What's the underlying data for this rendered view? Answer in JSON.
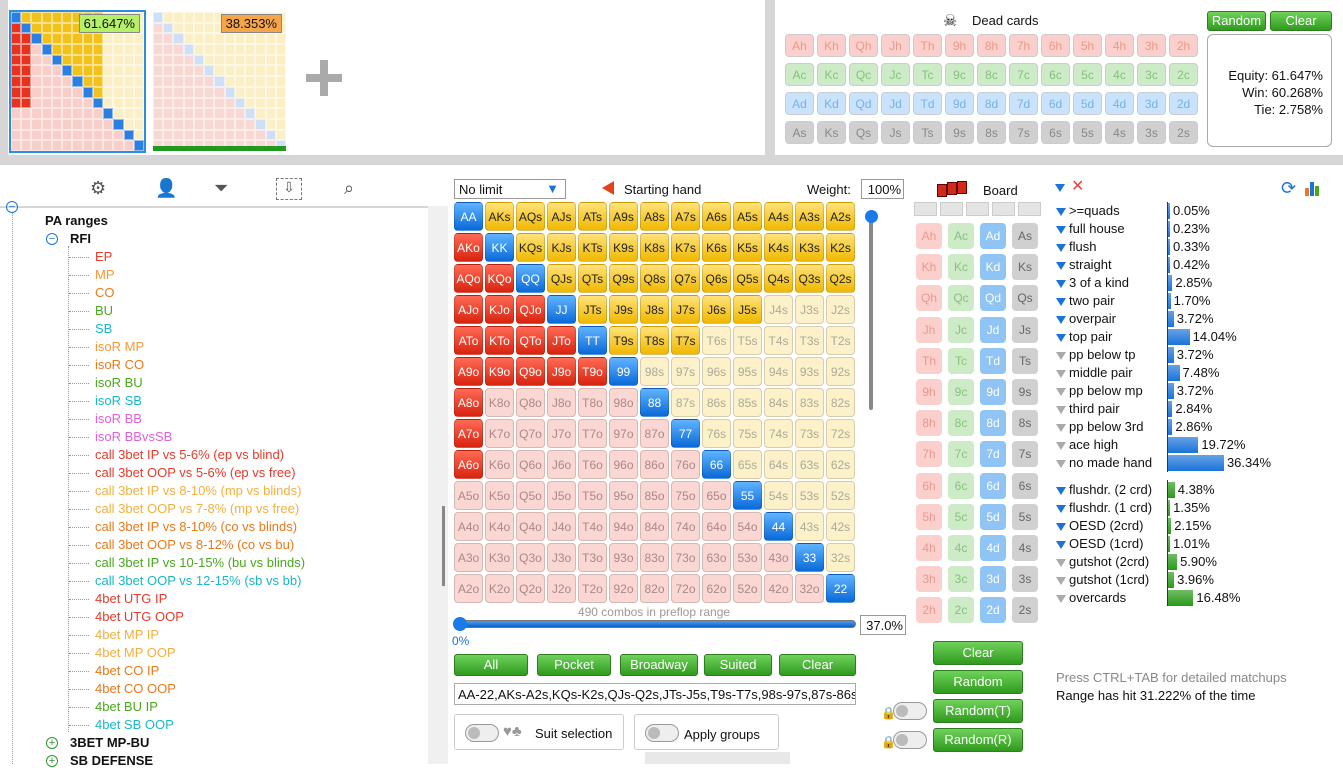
{
  "players": [
    {
      "equity": "61.647%",
      "badge_color": "#b6f06a"
    },
    {
      "equity": "38.353%",
      "badge_color": "#f5a64a"
    }
  ],
  "dead_cards": {
    "title": "Dead cards",
    "random_label": "Random",
    "clear_label": "Clear",
    "rows": [
      [
        "Ah",
        "Kh",
        "Qh",
        "Jh",
        "Th",
        "9h",
        "8h",
        "7h",
        "6h",
        "5h",
        "4h",
        "3h",
        "2h"
      ],
      [
        "Ac",
        "Kc",
        "Qc",
        "Jc",
        "Tc",
        "9c",
        "8c",
        "7c",
        "6c",
        "5c",
        "4c",
        "3c",
        "2c"
      ],
      [
        "Ad",
        "Kd",
        "Qd",
        "Jd",
        "Td",
        "9d",
        "8d",
        "7d",
        "6d",
        "5d",
        "4d",
        "3d",
        "2d"
      ],
      [
        "As",
        "Ks",
        "Qs",
        "Js",
        "Ts",
        "9s",
        "8s",
        "7s",
        "6s",
        "5s",
        "4s",
        "3s",
        "2s"
      ]
    ],
    "equity": "Equity: 61.647%",
    "win": "Win: 60.268%",
    "tie": "Tie: 2.758%"
  },
  "tree": {
    "root": "PA ranges",
    "rfi": "RFI",
    "items": [
      {
        "t": "EP",
        "c": "#e23c2c"
      },
      {
        "t": "MP",
        "c": "#f29a3a"
      },
      {
        "t": "CO",
        "c": "#e87a1a"
      },
      {
        "t": "BU",
        "c": "#4aa81e"
      },
      {
        "t": "SB",
        "c": "#1ab8c8"
      },
      {
        "t": "isoR MP",
        "c": "#f29a3a"
      },
      {
        "t": "isoR CO",
        "c": "#e87a1a"
      },
      {
        "t": "isoR BU",
        "c": "#4aa81e"
      },
      {
        "t": "isoR SB",
        "c": "#1ab8c8"
      },
      {
        "t": "isoR BB",
        "c": "#e060d8"
      },
      {
        "t": "isoR BBvsSB",
        "c": "#e060d8"
      },
      {
        "t": "call 3bet IP vs 5-6% (ep vs blind)",
        "c": "#e23c2c"
      },
      {
        "t": "call 3bet OOP vs 5-6% (ep vs free)",
        "c": "#e23c2c"
      },
      {
        "t": "call 3bet IP vs 8-10% (mp vs blinds)",
        "c": "#f2b040"
      },
      {
        "t": "call 3bet OOP vs 7-8% (mp vs free)",
        "c": "#f2b040"
      },
      {
        "t": "call 3bet IP vs 8-10% (co vs blinds)",
        "c": "#e87a1a"
      },
      {
        "t": "call 3bet OOP vs 8-12% (co vs bu)",
        "c": "#e87a1a"
      },
      {
        "t": "call 3bet IP vs 10-15% (bu vs blinds)",
        "c": "#4aa81e"
      },
      {
        "t": "call 3bet OOP vs 12-15% (sb vs bb)",
        "c": "#1ab8c8"
      },
      {
        "t": "4bet UTG IP",
        "c": "#e23c2c"
      },
      {
        "t": "4bet UTG OOP",
        "c": "#e23c2c"
      },
      {
        "t": "4bet MP IP",
        "c": "#f2b040"
      },
      {
        "t": "4bet MP OOP",
        "c": "#f2b040"
      },
      {
        "t": "4bet CO IP",
        "c": "#e87a1a"
      },
      {
        "t": "4bet CO OOP",
        "c": "#e87a1a"
      },
      {
        "t": "4bet BU IP",
        "c": "#4aa81e"
      },
      {
        "t": "4bet SB OOP",
        "c": "#1ab8c8"
      }
    ],
    "group2": "3BET MP-BU",
    "group3": "SB DEFENSE"
  },
  "range": {
    "limit": "No limit",
    "starting_hand": "Starting hand",
    "weight_label": "Weight:",
    "weight": "100%",
    "combos": "490 combos in preflop range",
    "slider_pct": "37.0%",
    "min_pct": "0%",
    "buttons": [
      "All",
      "Pocket",
      "Broadway",
      "Suited",
      "Clear"
    ],
    "text": "AA-22,AKs-A2s,KQs-K2s,QJs-Q2s,JTs-J5s,T9s-T7s,98s-97s,87s-86s,",
    "suit_selection": "Suit selection",
    "apply_groups": "Apply groups"
  },
  "board": {
    "title": "Board",
    "cards": [
      [
        "Ah",
        "Ac",
        "Ad",
        "As"
      ],
      [
        "Kh",
        "Kc",
        "Kd",
        "Ks"
      ],
      [
        "Qh",
        "Qc",
        "Qd",
        "Qs"
      ],
      [
        "Jh",
        "Jc",
        "Jd",
        "Js"
      ],
      [
        "Th",
        "Tc",
        "Td",
        "Ts"
      ],
      [
        "9h",
        "9c",
        "9d",
        "9s"
      ],
      [
        "8h",
        "8c",
        "8d",
        "8s"
      ],
      [
        "7h",
        "7c",
        "7d",
        "7s"
      ],
      [
        "6h",
        "6c",
        "6d",
        "6s"
      ],
      [
        "5h",
        "5c",
        "5d",
        "5s"
      ],
      [
        "4h",
        "4c",
        "4d",
        "4s"
      ],
      [
        "3h",
        "3c",
        "3d",
        "3s"
      ],
      [
        "2h",
        "2c",
        "2d",
        "2s"
      ]
    ],
    "buttons": [
      "Clear",
      "Random",
      "Random(T)",
      "Random(R)"
    ]
  },
  "stats": {
    "made": [
      {
        "n": ">=quads",
        "v": "0.05%",
        "p": 0.05,
        "f": "b"
      },
      {
        "n": "full house",
        "v": "0.23%",
        "p": 0.23,
        "f": "b"
      },
      {
        "n": "flush",
        "v": "0.33%",
        "p": 0.33,
        "f": "b"
      },
      {
        "n": "straight",
        "v": "0.42%",
        "p": 0.42,
        "f": "b"
      },
      {
        "n": "3 of a kind",
        "v": "2.85%",
        "p": 2.85,
        "f": "b"
      },
      {
        "n": "two pair",
        "v": "1.70%",
        "p": 1.7,
        "f": "b"
      },
      {
        "n": "overpair",
        "v": "3.72%",
        "p": 3.72,
        "f": "b"
      },
      {
        "n": "top pair",
        "v": "14.04%",
        "p": 14.04,
        "f": "b"
      },
      {
        "n": "pp below tp",
        "v": "3.72%",
        "p": 3.72,
        "f": "g"
      },
      {
        "n": "middle pair",
        "v": "7.48%",
        "p": 7.48,
        "f": "g"
      },
      {
        "n": "pp below mp",
        "v": "3.72%",
        "p": 3.72,
        "f": "g"
      },
      {
        "n": "third pair",
        "v": "2.84%",
        "p": 2.84,
        "f": "g"
      },
      {
        "n": "pp below 3rd",
        "v": "2.86%",
        "p": 2.86,
        "f": "g"
      },
      {
        "n": "ace high",
        "v": "19.72%",
        "p": 19.72,
        "f": "g"
      },
      {
        "n": "no made hand",
        "v": "36.34%",
        "p": 36.34,
        "f": "g"
      }
    ],
    "draws": [
      {
        "n": "flushdr. (2 crd)",
        "v": "4.38%",
        "p": 4.38,
        "f": "b"
      },
      {
        "n": "flushdr. (1 crd)",
        "v": "1.35%",
        "p": 1.35,
        "f": "b"
      },
      {
        "n": "OESD (2crd)",
        "v": "2.15%",
        "p": 2.15,
        "f": "b"
      },
      {
        "n": "OESD (1crd)",
        "v": "1.01%",
        "p": 1.01,
        "f": "b"
      },
      {
        "n": "gutshot (2crd)",
        "v": "5.90%",
        "p": 5.9,
        "f": "g"
      },
      {
        "n": "gutshot (1crd)",
        "v": "3.96%",
        "p": 3.96,
        "f": "g"
      },
      {
        "n": "overcards",
        "v": "16.48%",
        "p": 16.48,
        "f": "g"
      }
    ],
    "hint": "Press CTRL+TAB for detailed matchups",
    "hit": "Range has hit 31.222% of the time"
  },
  "colors": {
    "hearts": "#fbd0cc",
    "clubs": "#cdebc6",
    "diamonds": "#c8e3fb",
    "spades": "#d0d0d0",
    "btn_green": "#3ea62a"
  }
}
